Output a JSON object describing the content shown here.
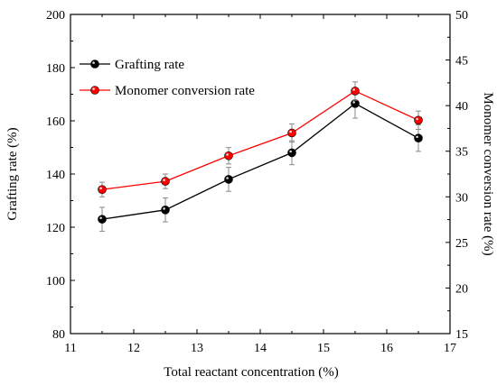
{
  "chart_data": {
    "type": "line",
    "title": "",
    "xlabel": "Total reactant concentration (%)",
    "ylabel_left": "Grafting rate (%)",
    "ylabel_right": "Monomer conversion rate (%)",
    "xlim": [
      11,
      17
    ],
    "ylim_left": [
      80,
      200
    ],
    "ylim_right": [
      15,
      50
    ],
    "x_ticks": [
      11,
      12,
      13,
      14,
      15,
      16,
      17
    ],
    "y_left_ticks": [
      80,
      100,
      120,
      140,
      160,
      180,
      200
    ],
    "y_right_ticks": [
      15,
      20,
      25,
      30,
      35,
      40,
      45,
      50
    ],
    "grid": false,
    "legend_position": "top-left",
    "series": [
      {
        "name": "Grafting rate",
        "axis": "left",
        "color": "#000000",
        "x": [
          11.5,
          12.5,
          13.5,
          14.5,
          15.5,
          16.5
        ],
        "y": [
          123,
          126.5,
          138,
          148,
          166.5,
          153.5
        ],
        "error": [
          4.5,
          4.5,
          4.5,
          4.5,
          5.5,
          5
        ]
      },
      {
        "name": "Monomer conversion rate",
        "axis": "right",
        "color": "#ff0000",
        "x": [
          11.5,
          12.5,
          13.5,
          14.5,
          15.5,
          16.5
        ],
        "y": [
          30.8,
          31.7,
          34.5,
          37.0,
          41.6,
          38.4
        ],
        "error": [
          0.8,
          0.8,
          0.9,
          1.0,
          1.0,
          1.0
        ]
      }
    ]
  }
}
